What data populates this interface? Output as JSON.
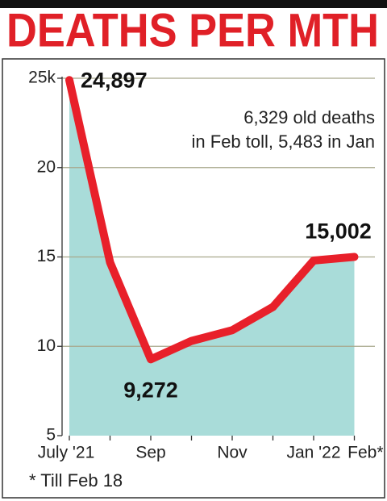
{
  "chart_data": {
    "type": "area-line",
    "title": "DEATHS PER MTH",
    "annotation": [
      "6,329 old deaths",
      "in Feb toll, 5,483 in Jan"
    ],
    "footnote": "* Till Feb 18",
    "categories": [
      "July '21",
      null,
      "Sep",
      null,
      "Nov",
      null,
      "Jan '22",
      "Feb*"
    ],
    "values": [
      24.897,
      14.7,
      9.272,
      10.3,
      10.9,
      12.2,
      14.8,
      15.002
    ],
    "value_labels": [
      "24,897",
      null,
      "9,272",
      null,
      null,
      null,
      null,
      "15,002"
    ],
    "line_color": "#e8202a",
    "fill_color": "#a9dcd9",
    "ylim": [
      5,
      25
    ],
    "yticks": [
      5,
      10,
      15,
      20,
      {
        "value": 25,
        "label": "25k"
      }
    ],
    "grid": true
  }
}
